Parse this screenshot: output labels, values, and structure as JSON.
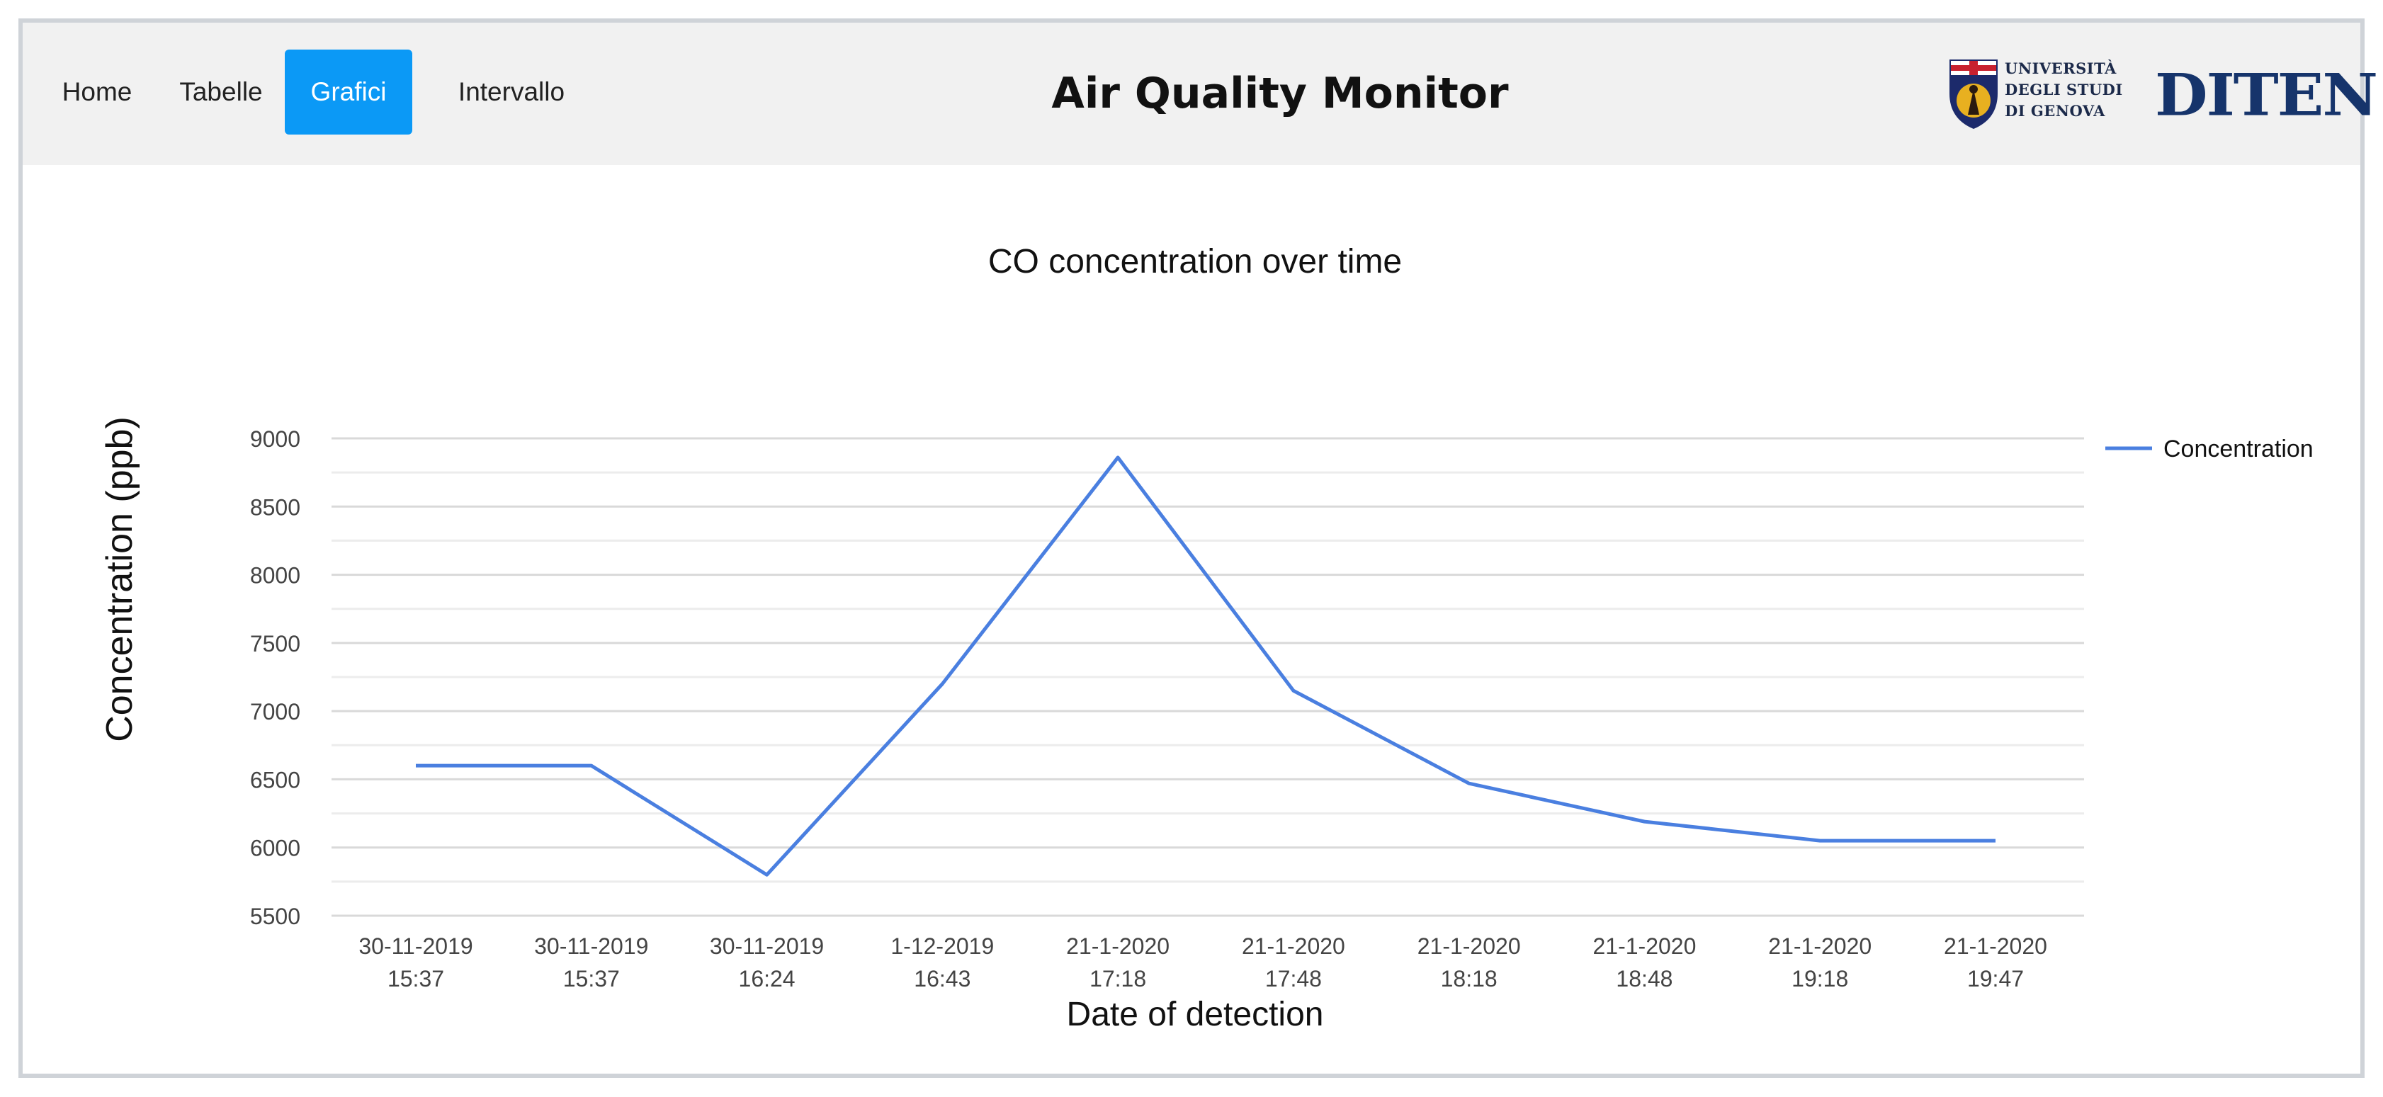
{
  "navbar": {
    "items": [
      {
        "label": "Home",
        "active": false
      },
      {
        "label": "Tabelle",
        "active": false
      },
      {
        "label": "Grafici",
        "active": true
      },
      {
        "label": "Intervallo",
        "active": false
      }
    ],
    "title": "Air Quality Monitor",
    "logos": {
      "unige_lines": [
        "UNIVERSITÀ",
        "DEGLI STUDI",
        "DI GENOVA"
      ],
      "diten": "DITEN"
    },
    "active_color": "#0b99f6"
  },
  "chart_data": {
    "type": "line",
    "title": "CO concentration over time",
    "xlabel": "Date of detection",
    "ylabel": "Concentration (ppb)",
    "categories": [
      [
        "30-11-2019",
        "15:37"
      ],
      [
        "30-11-2019",
        "15:37"
      ],
      [
        "30-11-2019",
        "16:24"
      ],
      [
        "1-12-2019",
        "16:43"
      ],
      [
        "21-1-2020",
        "17:18"
      ],
      [
        "21-1-2020",
        "17:48"
      ],
      [
        "21-1-2020",
        "18:18"
      ],
      [
        "21-1-2020",
        "18:48"
      ],
      [
        "21-1-2020",
        "19:18"
      ],
      [
        "21-1-2020",
        "19:47"
      ]
    ],
    "series": [
      {
        "name": "Concentration",
        "color": "#4a7fe0",
        "values": [
          6600,
          6600,
          5800,
          7200,
          8860,
          7150,
          6470,
          6190,
          6050,
          6050
        ]
      }
    ],
    "ylim": [
      5500,
      9000
    ],
    "yticks": [
      5500,
      6000,
      6500,
      7000,
      7500,
      8000,
      8500,
      9000
    ],
    "grid": true,
    "legend": "right"
  }
}
